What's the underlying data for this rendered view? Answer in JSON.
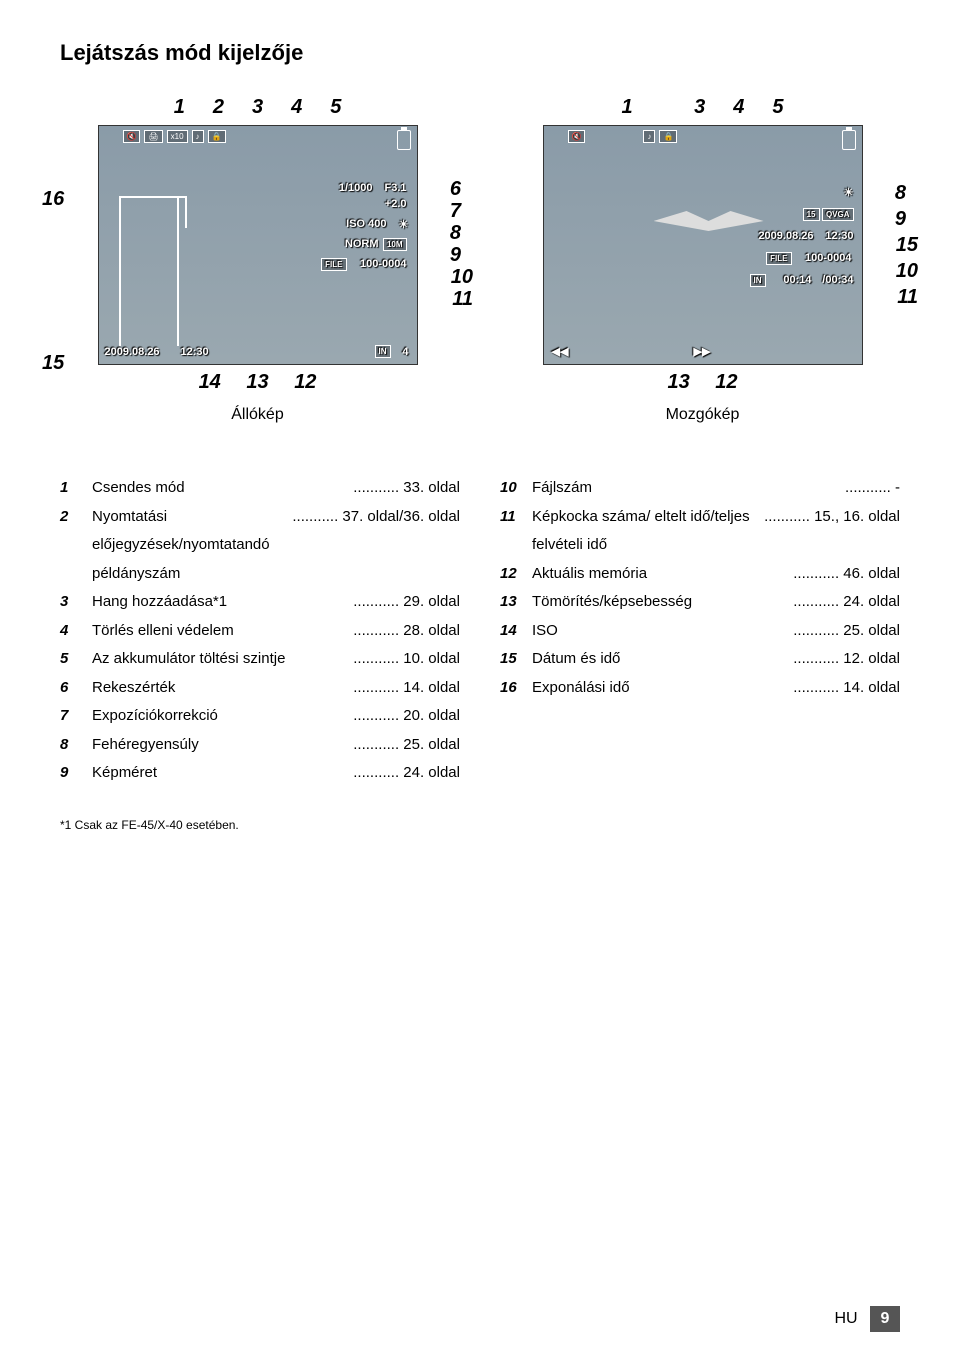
{
  "title": "Lejátszás mód kijelzője",
  "still": {
    "caption": "Állókép",
    "top_nums": [
      "1",
      "2",
      "3",
      "4",
      "5"
    ],
    "bottom_nums": [
      "14",
      "13",
      "12"
    ],
    "left_nums": [
      "16",
      "15"
    ],
    "right_nums": [
      "6",
      "7",
      "8",
      "9",
      "10",
      "11"
    ],
    "osd": {
      "x10": "x10",
      "shutter": "1/1000",
      "fnum": "F3.1",
      "exp": "+2.0",
      "iso": "ISO 400",
      "norm": "NORM",
      "size": "10M",
      "file_lbl": "FILE",
      "file": "100-0004",
      "date": "2009.08.26",
      "time": "12:30",
      "in": "IN",
      "count": "4"
    }
  },
  "movie": {
    "caption": "Mozgókép",
    "top_nums": [
      "1",
      "3",
      "4",
      "5"
    ],
    "bottom_nums": [
      "13",
      "12"
    ],
    "right_nums": [
      "8",
      "9",
      "15",
      "10",
      "11"
    ],
    "osd": {
      "fps": "15",
      "res": "QVGA",
      "date": "2009.08.26",
      "time": "12:30",
      "file_lbl": "FILE",
      "file": "100-0004",
      "in": "IN",
      "elapsed": "00:14",
      "total": "/00:34"
    }
  },
  "legend_left": [
    {
      "n": "1",
      "t": "Csendes mód",
      "p": "33. oldal"
    },
    {
      "n": "2",
      "t": "Nyomtatási előjegyzések/nyomtatandó példányszám",
      "p": "37. oldal/36. oldal"
    },
    {
      "n": "3",
      "t": "Hang hozzáadása*1",
      "p": "29. oldal"
    },
    {
      "n": "4",
      "t": "Törlés elleni védelem",
      "p": "28. oldal"
    },
    {
      "n": "5",
      "t": "Az akkumulátor töltési szintje",
      "p": "10. oldal"
    },
    {
      "n": "6",
      "t": "Rekeszérték",
      "p": "14. oldal"
    },
    {
      "n": "7",
      "t": "Expozíciókorrekció",
      "p": "20. oldal"
    },
    {
      "n": "8",
      "t": "Fehéregyensúly",
      "p": "25. oldal"
    },
    {
      "n": "9",
      "t": "Képméret",
      "p": "24. oldal"
    }
  ],
  "legend_right": [
    {
      "n": "10",
      "t": "Fájlszám",
      "p": "-"
    },
    {
      "n": "11",
      "t": "Képkocka száma/ eltelt idő/teljes felvételi idő",
      "p": "15., 16. oldal"
    },
    {
      "n": "12",
      "t": "Aktuális memória",
      "p": "46. oldal"
    },
    {
      "n": "13",
      "t": "Tömörítés/képsebesség",
      "p": "24. oldal"
    },
    {
      "n": "14",
      "t": "ISO",
      "p": "25. oldal"
    },
    {
      "n": "15",
      "t": "Dátum és idő",
      "p": "12. oldal"
    },
    {
      "n": "16",
      "t": "Exponálási idő",
      "p": "14. oldal"
    }
  ],
  "footnote": "*1 Csak az FE-45/X-40 esetében.",
  "footer_lang": "HU",
  "footer_page": "9"
}
